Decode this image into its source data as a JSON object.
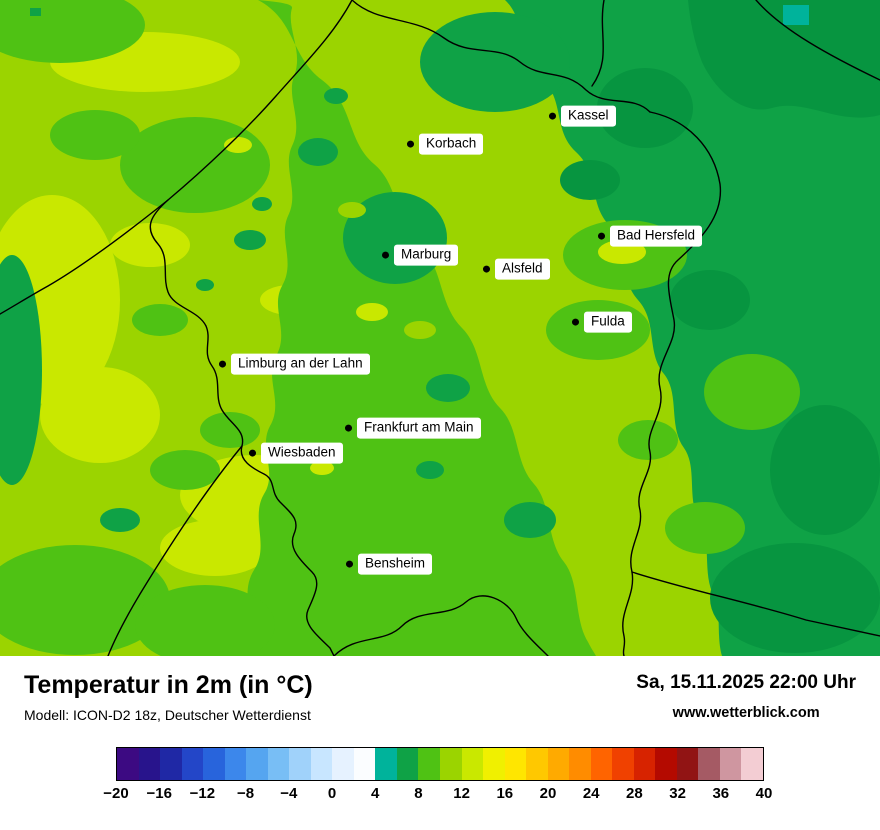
{
  "header": {
    "title": "Temperatur in 2m (in °C)",
    "model_line": "Modell: ICON-D2 18z, Deutscher Wetterdienst",
    "datetime": "Sa, 15.11.2025 22:00 Uhr",
    "website": "www.wetterblick.com"
  },
  "map": {
    "cities": [
      {
        "name": "Kassel"
      },
      {
        "name": "Korbach"
      },
      {
        "name": "Bad Hersfeld"
      },
      {
        "name": "Marburg"
      },
      {
        "name": "Alsfeld"
      },
      {
        "name": "Fulda"
      },
      {
        "name": "Limburg an der Lahn"
      },
      {
        "name": "Frankfurt am Main"
      },
      {
        "name": "Wiesbaden"
      },
      {
        "name": "Bensheim"
      }
    ]
  },
  "legend": {
    "unit": "°C",
    "min": -20,
    "max": 40,
    "step_per_cell": 2,
    "ticks": [
      "−20",
      "−16",
      "−12",
      "−8",
      "−4",
      "0",
      "4",
      "8",
      "12",
      "16",
      "20",
      "24",
      "28",
      "32",
      "36",
      "40"
    ],
    "colors": [
      "#3c0a82",
      "#28148c",
      "#1f28a5",
      "#2346c8",
      "#2864dc",
      "#3c87eb",
      "#55a5f0",
      "#78bef5",
      "#a0d2fa",
      "#c8e6ff",
      "#e6f2ff",
      "#fbfdff",
      "#00b39b",
      "#0fa246",
      "#4fc214",
      "#9bd400",
      "#c9e800",
      "#f0f000",
      "#ffe600",
      "#ffc800",
      "#ffaa00",
      "#ff8c00",
      "#ff6400",
      "#f04100",
      "#d72300",
      "#b40a00",
      "#911414",
      "#a55a64",
      "#cf96a0",
      "#f3cdd3"
    ]
  },
  "palette": {
    "base": "#9bd400",
    "lime": "#c9e800",
    "med": "#4fc214",
    "dark": "#0fa246",
    "darker": "#079540",
    "teal": "#00b39b"
  }
}
